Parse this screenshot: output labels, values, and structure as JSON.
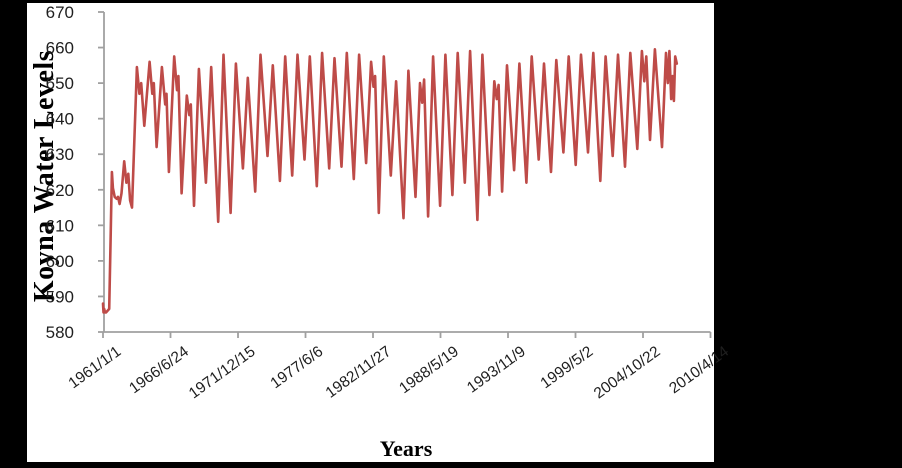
{
  "chart_data": {
    "type": "line",
    "title": "",
    "xlabel": "Years",
    "ylabel": "Koyna Water Levels",
    "grid": false,
    "legend": false,
    "line_color": "#be4b48",
    "axis_color": "#a0a0a0",
    "tick_label_color": "#1f1f1f",
    "x_range": [
      1961.0,
      2010.288
    ],
    "y_range": [
      580,
      670
    ],
    "y_ticks": [
      580,
      590,
      600,
      610,
      620,
      630,
      640,
      650,
      660,
      670
    ],
    "x_ticks": [
      {
        "label": "1961/1/1",
        "value": 1961.0
      },
      {
        "label": "1966/6/24",
        "value": 1966.477
      },
      {
        "label": "1971/12/15",
        "value": 1971.954
      },
      {
        "label": "1977/6/6",
        "value": 1977.43
      },
      {
        "label": "1982/11/27",
        "value": 1982.906
      },
      {
        "label": "1988/5/19",
        "value": 1988.383
      },
      {
        "label": "1993/11/9",
        "value": 1993.859
      },
      {
        "label": "1999/5/2",
        "value": 1999.335
      },
      {
        "label": "2004/10/22",
        "value": 2004.812
      },
      {
        "label": "2010/4/14",
        "value": 2010.288
      }
    ],
    "series": [
      {
        "name": "Koyna Water Levels",
        "points": [
          [
            1961.0,
            588
          ],
          [
            1961.04,
            585.5
          ],
          [
            1961.1,
            586.5
          ],
          [
            1961.16,
            585.5
          ],
          [
            1961.25,
            585.5
          ],
          [
            1961.5,
            586.5
          ],
          [
            1961.62,
            606
          ],
          [
            1961.72,
            625
          ],
          [
            1961.8,
            620.5
          ],
          [
            1961.95,
            618
          ],
          [
            1962.1,
            617.5
          ],
          [
            1962.22,
            618
          ],
          [
            1962.35,
            616
          ],
          [
            1962.5,
            619
          ],
          [
            1962.72,
            628
          ],
          [
            1962.9,
            622
          ],
          [
            1963.05,
            624.5
          ],
          [
            1963.2,
            617
          ],
          [
            1963.35,
            615
          ],
          [
            1963.75,
            654.5
          ],
          [
            1963.95,
            647
          ],
          [
            1964.1,
            650
          ],
          [
            1964.35,
            638
          ],
          [
            1964.78,
            656
          ],
          [
            1965.0,
            647
          ],
          [
            1965.12,
            650
          ],
          [
            1965.35,
            632
          ],
          [
            1965.78,
            654.5
          ],
          [
            1966.05,
            644
          ],
          [
            1966.15,
            647
          ],
          [
            1966.35,
            625
          ],
          [
            1966.78,
            657.5
          ],
          [
            1967.0,
            648
          ],
          [
            1967.12,
            652
          ],
          [
            1967.38,
            619
          ],
          [
            1967.8,
            646.5
          ],
          [
            1968.0,
            641
          ],
          [
            1968.12,
            644
          ],
          [
            1968.38,
            615.5
          ],
          [
            1968.78,
            654
          ],
          [
            1969.35,
            622
          ],
          [
            1969.78,
            654.5
          ],
          [
            1970.35,
            611
          ],
          [
            1970.78,
            658
          ],
          [
            1971.35,
            613.5
          ],
          [
            1971.78,
            655.5
          ],
          [
            1972.35,
            626
          ],
          [
            1972.75,
            651.5
          ],
          [
            1973.35,
            619.5
          ],
          [
            1973.78,
            658
          ],
          [
            1974.35,
            629.5
          ],
          [
            1974.78,
            655
          ],
          [
            1975.35,
            622.5
          ],
          [
            1975.78,
            657.5
          ],
          [
            1976.35,
            624
          ],
          [
            1976.78,
            658
          ],
          [
            1977.35,
            628.5
          ],
          [
            1977.78,
            657.5
          ],
          [
            1978.35,
            621
          ],
          [
            1978.78,
            658.5
          ],
          [
            1979.35,
            626
          ],
          [
            1979.78,
            657
          ],
          [
            1980.35,
            626.5
          ],
          [
            1980.78,
            658.5
          ],
          [
            1981.35,
            623
          ],
          [
            1981.78,
            658
          ],
          [
            1982.35,
            627.5
          ],
          [
            1982.75,
            656
          ],
          [
            1982.95,
            649
          ],
          [
            1983.08,
            652
          ],
          [
            1983.38,
            613.5
          ],
          [
            1983.78,
            657.5
          ],
          [
            1984.35,
            624
          ],
          [
            1984.78,
            650.5
          ],
          [
            1985.38,
            612
          ],
          [
            1985.78,
            653.5
          ],
          [
            1986.35,
            618
          ],
          [
            1986.72,
            650
          ],
          [
            1986.9,
            644.5
          ],
          [
            1987.05,
            651
          ],
          [
            1987.38,
            612.5
          ],
          [
            1987.78,
            657.5
          ],
          [
            1988.35,
            615.5
          ],
          [
            1988.78,
            658
          ],
          [
            1989.35,
            618.5
          ],
          [
            1989.78,
            658.5
          ],
          [
            1990.35,
            622
          ],
          [
            1990.78,
            659
          ],
          [
            1991.38,
            611.5
          ],
          [
            1991.78,
            658
          ],
          [
            1992.35,
            618.5
          ],
          [
            1992.75,
            650.5
          ],
          [
            1992.95,
            645.5
          ],
          [
            1993.1,
            649.5
          ],
          [
            1993.38,
            619.5
          ],
          [
            1993.78,
            655
          ],
          [
            1994.35,
            625.5
          ],
          [
            1994.78,
            655.5
          ],
          [
            1995.35,
            622
          ],
          [
            1995.78,
            657.5
          ],
          [
            1996.35,
            628.5
          ],
          [
            1996.78,
            655.5
          ],
          [
            1997.35,
            625
          ],
          [
            1997.78,
            656.5
          ],
          [
            1998.35,
            630.5
          ],
          [
            1998.78,
            657.5
          ],
          [
            1999.35,
            627
          ],
          [
            1999.78,
            658
          ],
          [
            2000.35,
            630.5
          ],
          [
            2000.78,
            658.5
          ],
          [
            2001.35,
            622.5
          ],
          [
            2001.78,
            657.5
          ],
          [
            2002.35,
            629.5
          ],
          [
            2002.78,
            658
          ],
          [
            2003.35,
            626.5
          ],
          [
            2003.78,
            658.5
          ],
          [
            2004.35,
            631.5
          ],
          [
            2004.72,
            659
          ],
          [
            2004.92,
            650.5
          ],
          [
            2005.08,
            657.5
          ],
          [
            2005.38,
            634
          ],
          [
            2005.78,
            659.5
          ],
          [
            2006.35,
            632
          ],
          [
            2006.68,
            658.5
          ],
          [
            2006.82,
            650
          ],
          [
            2006.95,
            659
          ],
          [
            2007.1,
            645.5
          ],
          [
            2007.22,
            652
          ],
          [
            2007.32,
            645
          ],
          [
            2007.42,
            657.5
          ],
          [
            2007.55,
            655.5
          ]
        ]
      }
    ]
  },
  "frame": {
    "backdrop_color": "#000000",
    "panel_color": "#ffffff"
  }
}
